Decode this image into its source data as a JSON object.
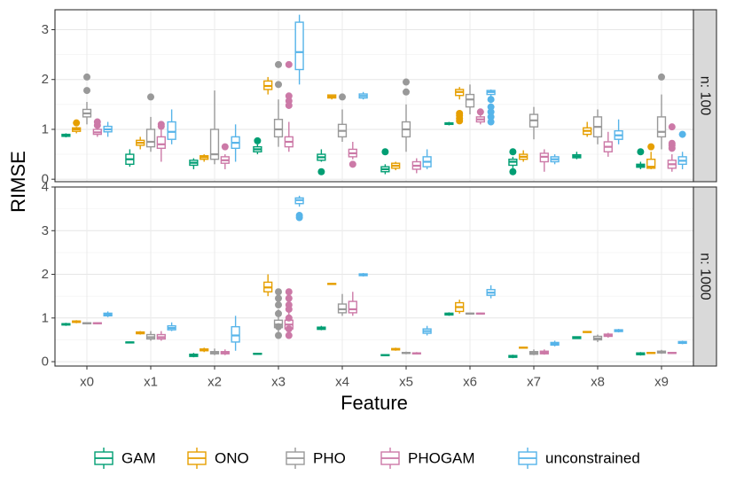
{
  "chart_data": {
    "type": "boxplot",
    "xlabel": "Feature",
    "ylabel": "RIMSE",
    "categories": [
      "x0",
      "x1",
      "x2",
      "x3",
      "x4",
      "x5",
      "x6",
      "x7",
      "x8",
      "x9"
    ],
    "methods": [
      {
        "name": "GAM",
        "color": "#009E73"
      },
      {
        "name": "ONO",
        "color": "#E69F00"
      },
      {
        "name": "PHO",
        "color": "#999999"
      },
      {
        "name": "PHOGAM",
        "color": "#CC79A7"
      },
      {
        "name": "unconstrained",
        "color": "#56B4E9"
      }
    ],
    "panels": [
      {
        "label": "n: 100",
        "ylim": [
          -0.05,
          3.4
        ],
        "yticks": [
          0,
          1,
          2,
          3
        ],
        "ytick_labels": [
          "0",
          "1",
          "2",
          "3"
        ],
        "boxes": [
          [
            [
              0.84,
              0.86,
              0.88,
              0.9,
              0.92,
              []
            ],
            [
              0.92,
              0.96,
              1.0,
              1.03,
              1.05,
              [
                1.13
              ]
            ],
            [
              1.1,
              1.25,
              1.32,
              1.4,
              1.55,
              [
                1.78,
                2.05
              ]
            ],
            [
              0.85,
              0.9,
              0.94,
              1.0,
              1.05,
              [
                1.08,
                1.15
              ]
            ],
            [
              0.85,
              0.95,
              1.0,
              1.06,
              1.15,
              []
            ]
          ],
          [
            [
              0.25,
              0.3,
              0.4,
              0.5,
              0.6,
              []
            ],
            [
              0.6,
              0.68,
              0.73,
              0.78,
              0.85,
              []
            ],
            [
              0.55,
              0.65,
              0.75,
              1.0,
              1.25,
              [
                1.65
              ]
            ],
            [
              0.35,
              0.62,
              0.7,
              0.85,
              1.0,
              [
                1.06,
                1.1
              ]
            ],
            [
              0.7,
              0.8,
              0.95,
              1.15,
              1.4,
              []
            ]
          ],
          [
            [
              0.2,
              0.28,
              0.33,
              0.38,
              0.42,
              []
            ],
            [
              0.35,
              0.4,
              0.44,
              0.47,
              0.5,
              []
            ],
            [
              0.3,
              0.4,
              0.5,
              1.0,
              1.78,
              []
            ],
            [
              0.2,
              0.32,
              0.38,
              0.45,
              0.5,
              [
                0.65
              ]
            ],
            [
              0.35,
              0.62,
              0.73,
              0.85,
              1.1,
              []
            ]
          ],
          [
            [
              0.5,
              0.55,
              0.6,
              0.65,
              0.7,
              [
                0.77
              ]
            ],
            [
              1.7,
              1.8,
              1.87,
              1.97,
              2.05,
              []
            ],
            [
              0.65,
              0.85,
              1.0,
              1.2,
              1.6,
              [
                1.9,
                2.3
              ]
            ],
            [
              0.55,
              0.65,
              0.75,
              0.85,
              1.15,
              [
                1.48,
                1.57,
                1.67,
                2.3
              ]
            ],
            [
              1.9,
              2.2,
              2.55,
              3.15,
              3.3,
              []
            ]
          ],
          [
            [
              0.35,
              0.38,
              0.44,
              0.5,
              0.6,
              [
                0.15
              ]
            ],
            [
              1.6,
              1.63,
              1.66,
              1.69,
              1.7,
              []
            ],
            [
              0.75,
              0.85,
              0.97,
              1.1,
              1.4,
              [
                1.65
              ]
            ],
            [
              0.4,
              0.45,
              0.52,
              0.6,
              0.75,
              [
                0.3
              ]
            ],
            [
              1.6,
              1.63,
              1.67,
              1.71,
              1.75,
              []
            ]
          ],
          [
            [
              0.1,
              0.15,
              0.2,
              0.25,
              0.3,
              [
                0.55
              ]
            ],
            [
              0.18,
              0.22,
              0.27,
              0.32,
              0.35,
              []
            ],
            [
              0.55,
              0.85,
              1.0,
              1.15,
              1.5,
              [
                1.75,
                1.95
              ]
            ],
            [
              0.12,
              0.2,
              0.27,
              0.35,
              0.42,
              []
            ],
            [
              0.2,
              0.25,
              0.35,
              0.45,
              0.6,
              []
            ]
          ],
          [
            [
              1.08,
              1.1,
              1.12,
              1.13,
              1.15,
              []
            ],
            [
              1.6,
              1.68,
              1.75,
              1.8,
              1.85,
              [
                1.17,
                1.22,
                1.28,
                1.32
              ]
            ],
            [
              1.3,
              1.45,
              1.6,
              1.7,
              1.9,
              []
            ],
            [
              1.1,
              1.15,
              1.2,
              1.25,
              1.3,
              [
                1.35
              ]
            ],
            [
              1.65,
              1.7,
              1.75,
              1.78,
              1.8,
              [
                1.15,
                1.25,
                1.35,
                1.45,
                1.6
              ]
            ]
          ],
          [
            [
              0.22,
              0.28,
              0.35,
              0.4,
              0.45,
              [
                0.15,
                0.55
              ]
            ],
            [
              0.35,
              0.4,
              0.45,
              0.5,
              0.58,
              []
            ],
            [
              0.8,
              1.05,
              1.18,
              1.3,
              1.45,
              []
            ],
            [
              0.15,
              0.35,
              0.45,
              0.52,
              0.6,
              []
            ],
            [
              0.3,
              0.35,
              0.4,
              0.45,
              0.5,
              []
            ]
          ],
          [
            [
              0.4,
              0.43,
              0.46,
              0.49,
              0.55,
              []
            ],
            [
              0.85,
              0.9,
              0.97,
              1.03,
              1.15,
              []
            ],
            [
              0.7,
              0.85,
              1.05,
              1.25,
              1.4,
              []
            ],
            [
              0.45,
              0.55,
              0.65,
              0.75,
              0.95,
              []
            ],
            [
              0.7,
              0.8,
              0.88,
              0.97,
              1.2,
              []
            ]
          ],
          [
            [
              0.2,
              0.24,
              0.27,
              0.3,
              0.35,
              [
                0.55
              ]
            ],
            [
              0.2,
              0.22,
              0.25,
              0.4,
              0.55,
              [
                0.65
              ]
            ],
            [
              0.6,
              0.85,
              0.95,
              1.25,
              1.7,
              [
                2.05
              ]
            ],
            [
              0.15,
              0.22,
              0.3,
              0.38,
              0.5,
              [
                0.62,
                0.68,
                0.72,
                1.05
              ]
            ],
            [
              0.2,
              0.3,
              0.37,
              0.45,
              0.55,
              [
                0.9
              ]
            ]
          ]
        ]
      },
      {
        "label": "n: 1000",
        "ylim": [
          -0.1,
          4.0
        ],
        "yticks": [
          0,
          1,
          2,
          3,
          4
        ],
        "ytick_labels": [
          "0",
          "1",
          "2",
          "3",
          "4"
        ],
        "boxes": [
          [
            [
              0.82,
              0.84,
              0.86,
              0.87,
              0.89,
              []
            ],
            [
              0.88,
              0.9,
              0.92,
              0.93,
              0.95,
              []
            ],
            [
              0.86,
              0.87,
              0.88,
              0.89,
              0.9,
              []
            ],
            [
              0.86,
              0.87,
              0.88,
              0.89,
              0.9,
              []
            ],
            [
              1.02,
              1.05,
              1.08,
              1.11,
              1.15,
              []
            ]
          ],
          [
            [
              0.42,
              0.43,
              0.44,
              0.45,
              0.46,
              []
            ],
            [
              0.62,
              0.64,
              0.66,
              0.68,
              0.7,
              []
            ],
            [
              0.48,
              0.52,
              0.56,
              0.62,
              0.7,
              []
            ],
            [
              0.48,
              0.52,
              0.56,
              0.62,
              0.7,
              []
            ],
            [
              0.7,
              0.73,
              0.77,
              0.82,
              0.9,
              []
            ]
          ],
          [
            [
              0.1,
              0.12,
              0.15,
              0.17,
              0.2,
              []
            ],
            [
              0.22,
              0.25,
              0.27,
              0.29,
              0.32,
              []
            ],
            [
              0.15,
              0.18,
              0.2,
              0.23,
              0.3,
              []
            ],
            [
              0.15,
              0.18,
              0.2,
              0.23,
              0.28,
              []
            ],
            [
              0.25,
              0.45,
              0.6,
              0.8,
              1.05,
              []
            ]
          ],
          [
            [
              0.17,
              0.17,
              0.18,
              0.19,
              0.2,
              []
            ],
            [
              1.5,
              1.6,
              1.7,
              1.82,
              2.0,
              []
            ],
            [
              0.6,
              0.78,
              0.85,
              0.95,
              1.2,
              [
                0.6,
                0.8,
                1.1,
                1.3,
                1.45,
                1.6
              ]
            ],
            [
              0.6,
              0.75,
              0.85,
              0.95,
              1.15,
              [
                0.6,
                0.75,
                1.0,
                1.2,
                1.3,
                1.45,
                1.6
              ]
            ],
            [
              3.55,
              3.62,
              3.7,
              3.75,
              3.8,
              [
                3.3,
                3.35
              ]
            ]
          ],
          [
            [
              0.72,
              0.74,
              0.77,
              0.79,
              0.82,
              []
            ],
            [
              1.76,
              1.77,
              1.78,
              1.79,
              1.8,
              []
            ],
            [
              1.05,
              1.12,
              1.2,
              1.32,
              1.55,
              []
            ],
            [
              1.05,
              1.12,
              1.2,
              1.38,
              1.6,
              []
            ],
            [
              1.95,
              1.97,
              1.99,
              2.01,
              2.03,
              []
            ]
          ],
          [
            [
              0.13,
              0.14,
              0.15,
              0.16,
              0.17,
              []
            ],
            [
              0.25,
              0.27,
              0.28,
              0.3,
              0.32,
              []
            ],
            [
              0.17,
              0.19,
              0.2,
              0.21,
              0.23,
              []
            ],
            [
              0.17,
              0.18,
              0.19,
              0.2,
              0.22,
              []
            ],
            [
              0.6,
              0.65,
              0.7,
              0.75,
              0.82,
              []
            ]
          ],
          [
            [
              1.05,
              1.07,
              1.09,
              1.11,
              1.13,
              []
            ],
            [
              1.1,
              1.15,
              1.25,
              1.35,
              1.42,
              []
            ],
            [
              1.09,
              1.1,
              1.1,
              1.11,
              1.12,
              []
            ],
            [
              1.09,
              1.1,
              1.1,
              1.11,
              1.12,
              []
            ],
            [
              1.45,
              1.52,
              1.58,
              1.65,
              1.75,
              []
            ]
          ],
          [
            [
              0.08,
              0.1,
              0.12,
              0.14,
              0.16,
              []
            ],
            [
              0.3,
              0.31,
              0.32,
              0.33,
              0.34,
              []
            ],
            [
              0.15,
              0.17,
              0.2,
              0.23,
              0.28,
              []
            ],
            [
              0.16,
              0.18,
              0.21,
              0.24,
              0.28,
              []
            ],
            [
              0.35,
              0.38,
              0.41,
              0.44,
              0.48,
              []
            ]
          ],
          [
            [
              0.52,
              0.53,
              0.55,
              0.57,
              0.58,
              []
            ],
            [
              0.66,
              0.67,
              0.68,
              0.69,
              0.7,
              []
            ],
            [
              0.45,
              0.5,
              0.53,
              0.58,
              0.62,
              []
            ],
            [
              0.55,
              0.58,
              0.61,
              0.63,
              0.66,
              []
            ],
            [
              0.67,
              0.69,
              0.71,
              0.73,
              0.75,
              []
            ]
          ],
          [
            [
              0.14,
              0.16,
              0.18,
              0.2,
              0.22,
              []
            ],
            [
              0.18,
              0.19,
              0.2,
              0.21,
              0.22,
              []
            ],
            [
              0.18,
              0.2,
              0.22,
              0.24,
              0.27,
              []
            ],
            [
              0.18,
              0.19,
              0.2,
              0.21,
              0.22,
              []
            ],
            [
              0.4,
              0.42,
              0.44,
              0.46,
              0.48,
              []
            ]
          ]
        ]
      }
    ]
  }
}
